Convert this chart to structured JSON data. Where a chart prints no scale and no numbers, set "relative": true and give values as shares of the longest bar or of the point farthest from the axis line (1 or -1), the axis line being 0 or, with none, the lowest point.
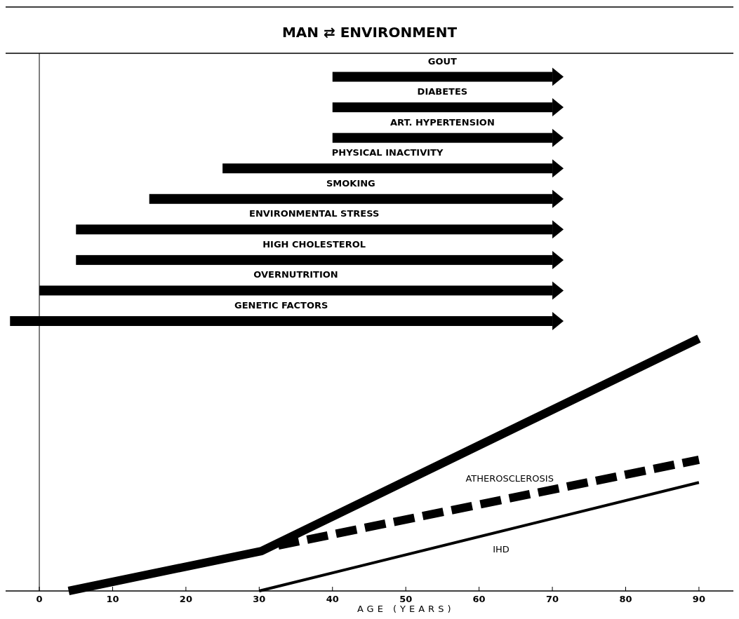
{
  "chart_data": [
    {
      "type": "bar",
      "orientation": "horizontal",
      "title": "MAN ⇄ ENVIRONMENT",
      "categories": [
        "GOUT",
        "DIABETES",
        "ART. HYPERTENSION",
        "PHYSICAL INACTIVITY",
        "SMOKING",
        "ENVIRONMENTAL STRESS",
        "HIGH CHOLESTEROL",
        "OVERNUTRITION",
        "GENETIC FACTORS"
      ],
      "base": [
        40,
        40,
        40,
        25,
        15,
        5,
        5,
        0,
        -4
      ],
      "values": [
        30,
        30,
        30,
        45,
        55,
        65,
        65,
        70,
        74
      ],
      "color": "#000000",
      "xlim": [
        -4.6,
        94.7
      ],
      "tick_labels": false
    },
    {
      "type": "line",
      "xlim": [
        -4.6,
        94.7
      ],
      "xticks": [
        0,
        10,
        20,
        30,
        40,
        50,
        60,
        70,
        80,
        90
      ],
      "xlabel": "AGE (YEARS)",
      "relative": true,
      "tick_labels": "x",
      "series": [
        {
          "color": "#000000",
          "line_style": "solid",
          "x": [
            4,
            30.3,
            90
          ],
          "values": [
            0,
            0.158,
            1
          ]
        },
        {
          "name": "ATHEROSCLEROSIS",
          "color": "#000000",
          "line_style": "dashed",
          "x": [
            32.6,
            90
          ],
          "values": [
            0.18,
            0.52
          ]
        },
        {
          "name": "IHD",
          "color": "#000000",
          "line_style": "solid",
          "x": [
            30,
            90
          ],
          "values": [
            0,
            0.43
          ]
        }
      ]
    }
  ]
}
